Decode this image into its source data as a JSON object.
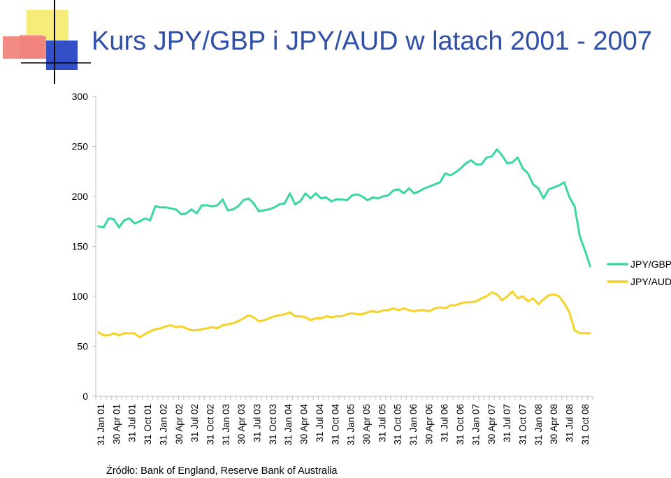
{
  "title": "Kurs JPY/GBP i JPY/AUD w latach 2001 - 2007",
  "source": "Źródło: Bank of England, Reserve Bank of Australia",
  "colors": {
    "gbp": "#3cd6a4",
    "aud": "#f5d225",
    "axis": "#bfbfbf",
    "title": "#2f4fa8"
  },
  "chart_data": {
    "type": "line",
    "title": "Kurs JPY/GBP i JPY/AUD w latach 2001 - 2007",
    "xlabel": "",
    "ylabel": "",
    "ylim": [
      0,
      300
    ],
    "yticks": [
      0,
      50,
      100,
      150,
      200,
      250,
      300
    ],
    "grid": false,
    "legend_position": "right",
    "x_tick_labels": [
      "31 Jan 01",
      "30 Apr 01",
      "31 Jul 01",
      "31 Oct 01",
      "31 Jan 02",
      "30 Apr 02",
      "31 Jul 02",
      "31 Oct 02",
      "31 Jan 03",
      "30 Apr 03",
      "31 Jul 03",
      "31 Oct 03",
      "31 Jan 04",
      "30 Apr 04",
      "31 Jul 04",
      "31 Oct 04",
      "31 Jan 05",
      "30 Apr 05",
      "31 Jul 05",
      "31 Oct 05",
      "31 Jan 06",
      "30 Apr 06",
      "31 Jul 06",
      "31 Oct 06",
      "31 Jan 07",
      "30 Apr 07",
      "31 Jul 07",
      "31 Oct 07",
      "31 Jan 08",
      "30 Apr 08",
      "31 Jul 08",
      "31 Oct 08"
    ],
    "series": [
      {
        "name": "JPY/GBP",
        "color": "#3cd6a4",
        "values": [
          170,
          169,
          178,
          177,
          169,
          176,
          178,
          173,
          175,
          178,
          176,
          190,
          189,
          189,
          188,
          187,
          182,
          183,
          187,
          183,
          191,
          191,
          190,
          191,
          197,
          186,
          187,
          190,
          196,
          198,
          193,
          185,
          186,
          187,
          189,
          192,
          193,
          203,
          192,
          195,
          203,
          198,
          203,
          198,
          199,
          195,
          197,
          197,
          196,
          201,
          202,
          200,
          196,
          199,
          198,
          200,
          201,
          206,
          207,
          203,
          208,
          203,
          205,
          208,
          210,
          212,
          214,
          223,
          221,
          224,
          228,
          233,
          236,
          232,
          232,
          239,
          240,
          247,
          241,
          233,
          234,
          239,
          228,
          223,
          212,
          208,
          198,
          207,
          209,
          211,
          214,
          199,
          190,
          160,
          146,
          130
        ]
      },
      {
        "name": "JPY/AUD",
        "color": "#f5d225",
        "values": [
          64,
          61,
          61,
          63,
          61,
          63,
          63,
          63,
          59,
          62,
          65,
          67,
          68,
          70,
          71,
          69,
          70,
          68,
          66,
          66,
          67,
          68,
          69,
          68,
          71,
          72,
          73,
          75,
          78,
          81,
          79,
          75,
          76,
          78,
          80,
          81,
          82,
          84,
          80,
          80,
          79,
          76,
          78,
          78,
          80,
          79,
          80,
          80,
          82,
          83,
          82,
          82,
          84,
          85,
          84,
          86,
          86,
          88,
          86,
          88,
          86,
          85,
          86,
          86,
          85,
          88,
          89,
          88,
          91,
          91,
          93,
          94,
          94,
          95,
          98,
          100,
          104,
          102,
          96,
          100,
          105,
          98,
          100,
          95,
          98,
          92,
          97,
          101,
          102,
          100,
          93,
          84,
          66,
          63,
          63,
          63
        ]
      }
    ]
  }
}
